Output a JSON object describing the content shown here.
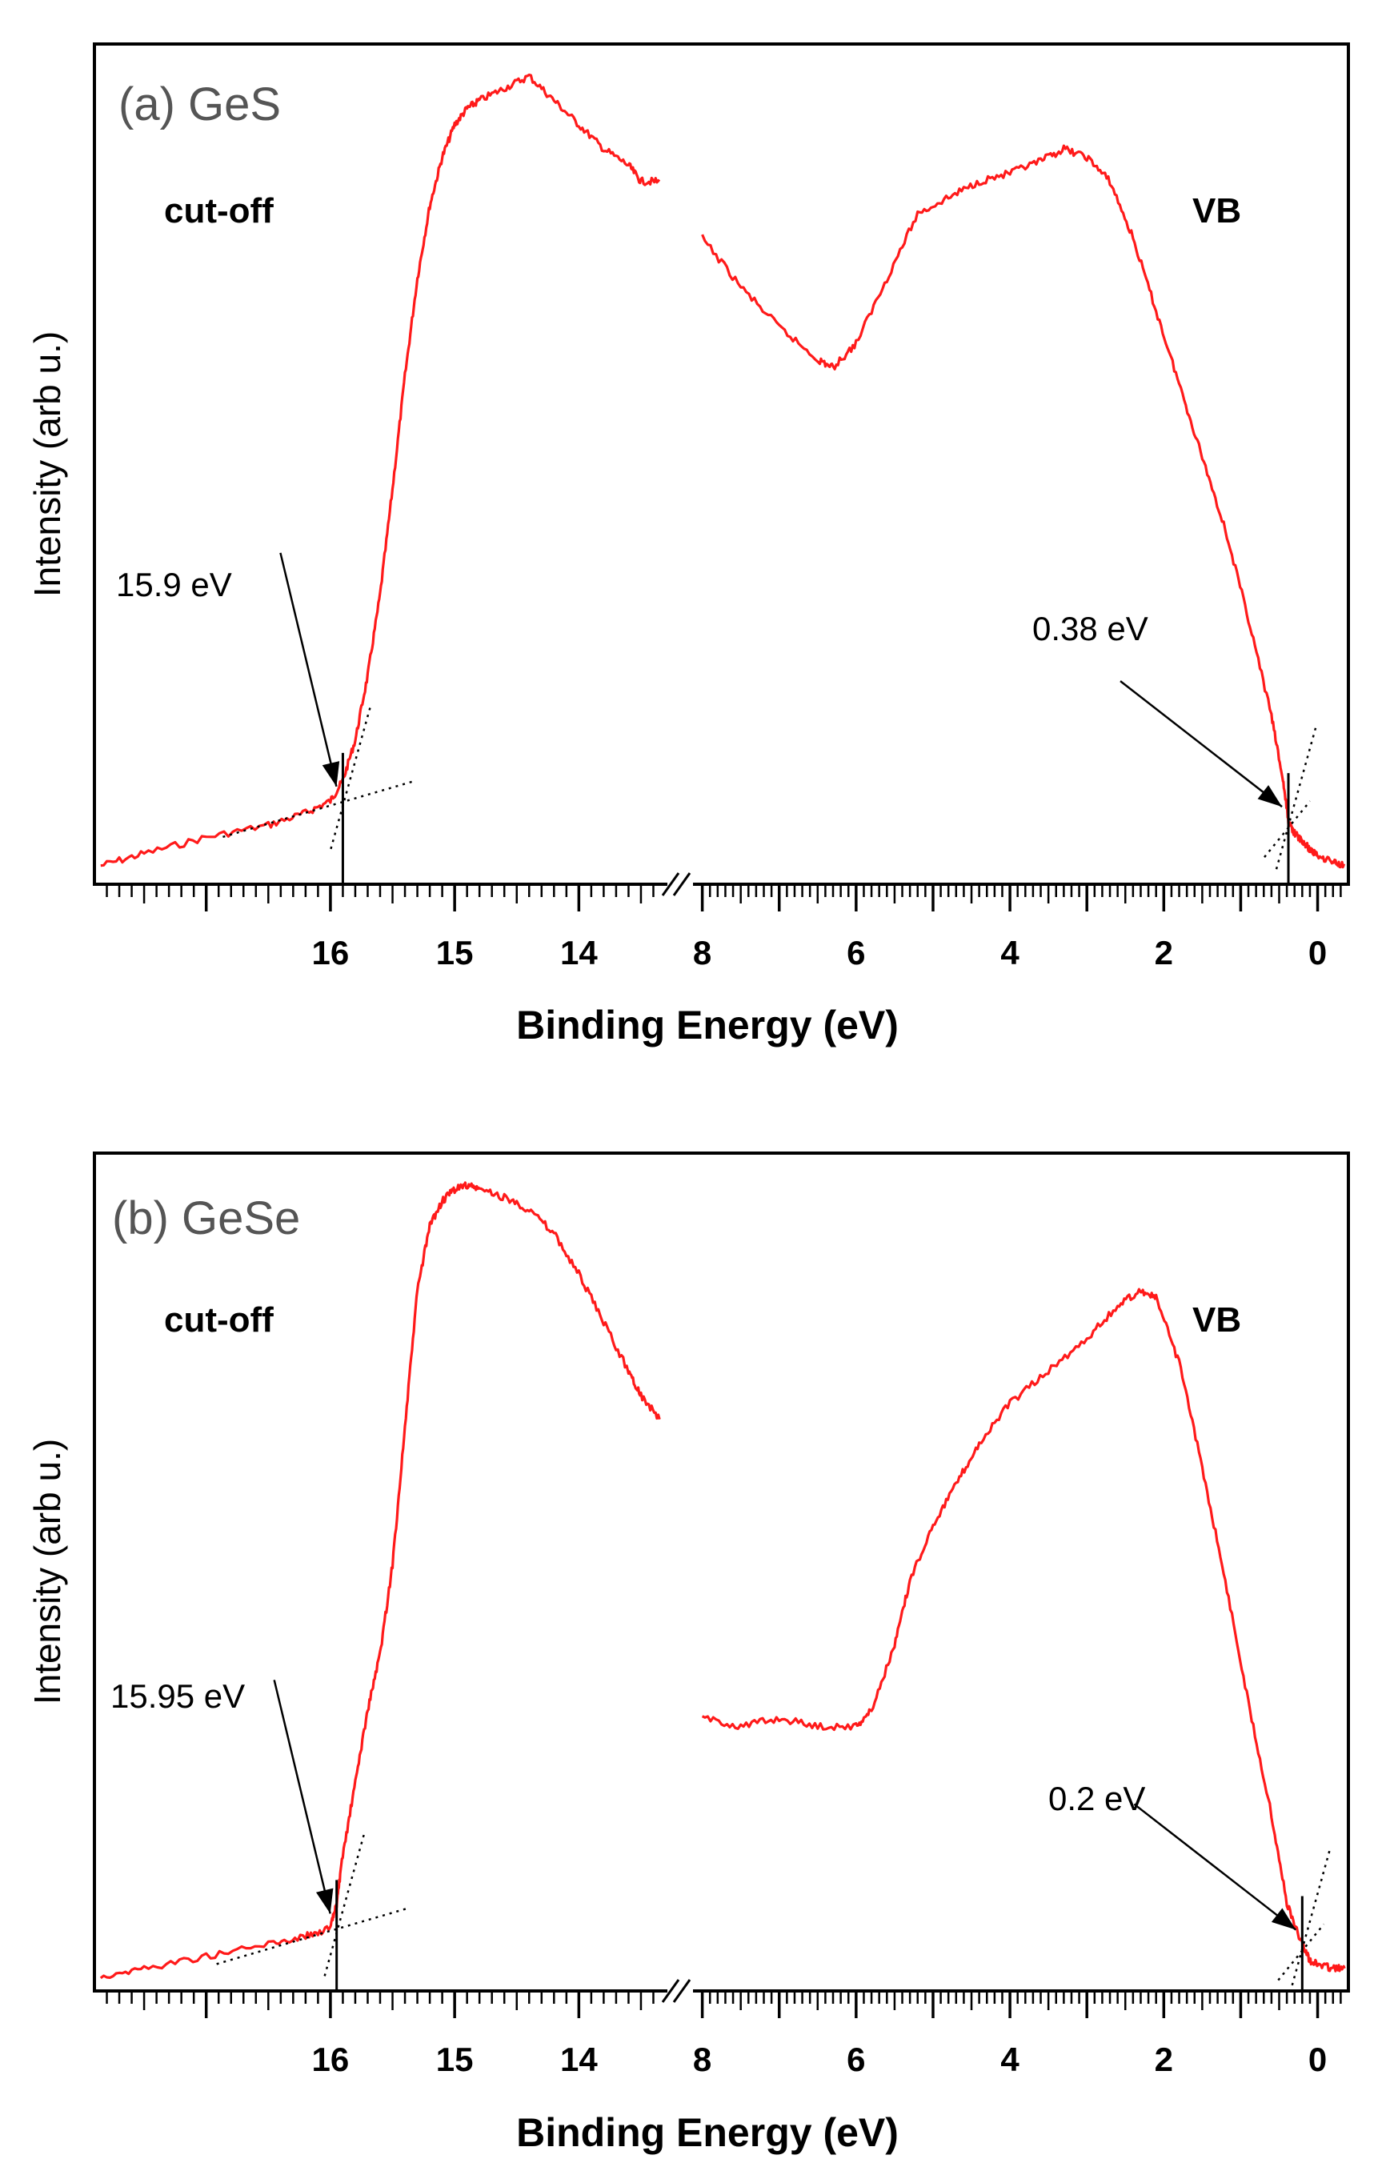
{
  "chart_data": [
    {
      "type": "line",
      "panel_title": "(a) GeS",
      "left_label": "cut-off",
      "right_label": "VB",
      "xlabel": "Binding Energy (eV)",
      "ylabel": "Intensity (arb u.)",
      "axis_break": true,
      "left_segment": {
        "xlim": [
          17.9,
          13.3
        ],
        "ticks": [
          "16",
          "15",
          "14"
        ],
        "tick_values": [
          16,
          15,
          14
        ]
      },
      "right_segment": {
        "xlim": [
          8.1,
          -0.4
        ],
        "ticks": [
          "8",
          "6",
          "4",
          "2",
          "0"
        ],
        "tick_values": [
          8,
          6,
          4,
          2,
          0
        ]
      },
      "ylim": [
        0,
        1
      ],
      "series": [
        {
          "name": "cut-off",
          "color": "#ff1a1a",
          "x": [
            17.85,
            17.5,
            17.0,
            16.5,
            16.2,
            16.0,
            15.9,
            15.8,
            15.7,
            15.6,
            15.5,
            15.4,
            15.3,
            15.2,
            15.1,
            15.0,
            14.9,
            14.8,
            14.6,
            14.4,
            14.2,
            14.0,
            13.8,
            13.6,
            13.5,
            13.35
          ],
          "y": [
            0.015,
            0.03,
            0.05,
            0.065,
            0.08,
            0.095,
            0.12,
            0.17,
            0.25,
            0.35,
            0.48,
            0.62,
            0.74,
            0.83,
            0.89,
            0.93,
            0.95,
            0.96,
            0.975,
            0.99,
            0.96,
            0.93,
            0.9,
            0.88,
            0.86,
            0.86
          ]
        },
        {
          "name": "VB",
          "color": "#ff1a1a",
          "x": [
            8.0,
            7.5,
            7.0,
            6.5,
            6.3,
            6.0,
            5.6,
            5.2,
            4.8,
            4.4,
            4.0,
            3.6,
            3.3,
            3.0,
            2.7,
            2.4,
            2.1,
            1.8,
            1.5,
            1.2,
            0.9,
            0.6,
            0.45,
            0.38,
            0.3,
            0.2,
            0.1,
            0.0,
            -0.2,
            -0.35
          ],
          "y": [
            0.79,
            0.73,
            0.68,
            0.64,
            0.63,
            0.66,
            0.74,
            0.82,
            0.84,
            0.86,
            0.87,
            0.885,
            0.9,
            0.89,
            0.86,
            0.79,
            0.7,
            0.61,
            0.52,
            0.43,
            0.32,
            0.2,
            0.12,
            0.07,
            0.055,
            0.045,
            0.035,
            0.028,
            0.02,
            0.015
          ]
        }
      ],
      "annotations": [
        {
          "text": "15.9 eV",
          "x": 15.9,
          "y": 0.095
        },
        {
          "text": "0.38 eV",
          "x": 0.38,
          "y": 0.07
        }
      ]
    },
    {
      "type": "line",
      "panel_title": "(b) GeSe",
      "left_label": "cut-off",
      "right_label": "VB",
      "xlabel": "Binding Energy (eV)",
      "ylabel": "Intensity (arb u.)",
      "axis_break": true,
      "left_segment": {
        "xlim": [
          17.9,
          13.3
        ],
        "ticks": [
          "16",
          "15",
          "14"
        ],
        "tick_values": [
          16,
          15,
          14
        ]
      },
      "right_segment": {
        "xlim": [
          8.1,
          -0.4
        ],
        "ticks": [
          "8",
          "6",
          "4",
          "2",
          "0"
        ],
        "tick_values": [
          8,
          6,
          4,
          2,
          0
        ]
      },
      "ylim": [
        0,
        1
      ],
      "series": [
        {
          "name": "cut-off",
          "color": "#ff1a1a",
          "x": [
            17.85,
            17.5,
            17.0,
            16.5,
            16.2,
            16.0,
            15.95,
            15.9,
            15.8,
            15.7,
            15.6,
            15.5,
            15.4,
            15.3,
            15.2,
            15.1,
            15.0,
            14.9,
            14.8,
            14.6,
            14.4,
            14.2,
            14.0,
            13.8,
            13.6,
            13.5,
            13.35
          ],
          "y": [
            0.01,
            0.02,
            0.035,
            0.05,
            0.06,
            0.07,
            0.1,
            0.16,
            0.25,
            0.34,
            0.41,
            0.52,
            0.69,
            0.86,
            0.94,
            0.97,
            0.985,
            0.99,
            0.985,
            0.975,
            0.96,
            0.93,
            0.88,
            0.82,
            0.76,
            0.73,
            0.7
          ]
        },
        {
          "name": "VB",
          "color": "#ff1a1a",
          "x": [
            8.0,
            7.5,
            7.0,
            6.5,
            6.0,
            5.8,
            5.5,
            5.3,
            5.0,
            4.7,
            4.4,
            4.0,
            3.5,
            3.0,
            2.6,
            2.3,
            2.1,
            1.8,
            1.5,
            1.2,
            0.9,
            0.6,
            0.4,
            0.2,
            0.1,
            0.0,
            -0.2,
            -0.35
          ],
          "y": [
            0.33,
            0.32,
            0.33,
            0.32,
            0.32,
            0.34,
            0.42,
            0.5,
            0.57,
            0.62,
            0.67,
            0.72,
            0.76,
            0.8,
            0.84,
            0.86,
            0.85,
            0.77,
            0.64,
            0.5,
            0.35,
            0.21,
            0.1,
            0.05,
            0.03,
            0.025,
            0.02,
            0.02
          ]
        }
      ],
      "annotations": [
        {
          "text": "15.95 eV",
          "x": 15.95,
          "y": 0.07
        },
        {
          "text": "0.2 eV",
          "x": 0.2,
          "y": 0.05
        }
      ]
    }
  ]
}
